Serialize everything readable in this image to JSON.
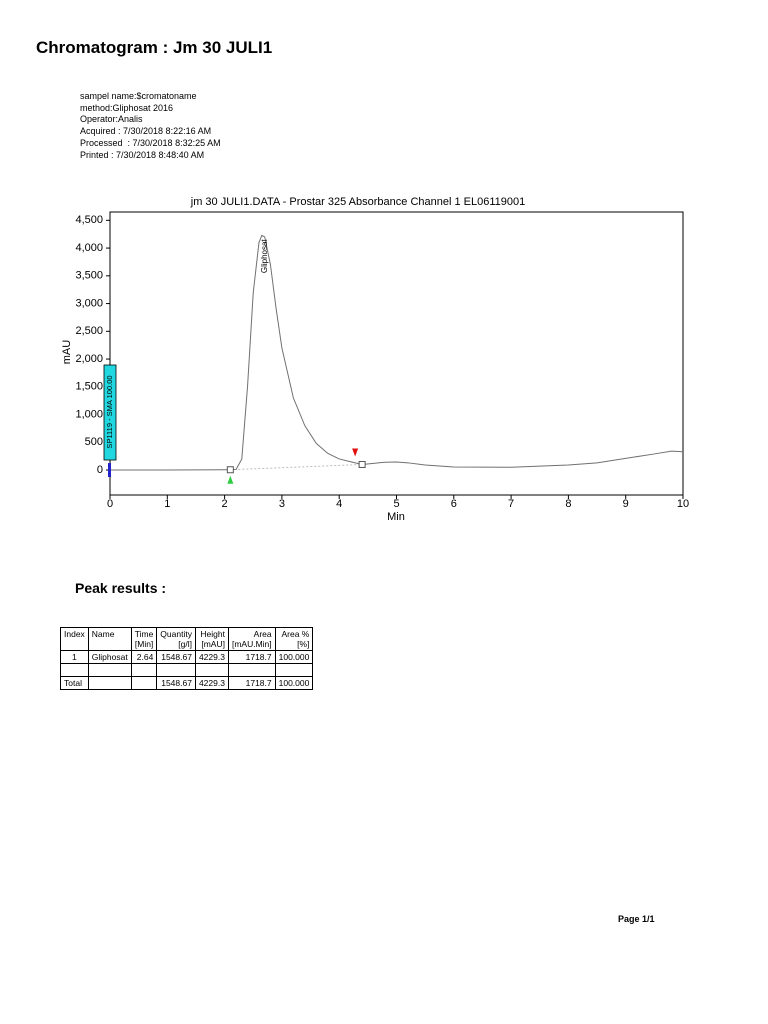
{
  "header": {
    "title": "Chromatogram : Jm 30 JULI1",
    "info": [
      "sampel name:$cromatoname",
      "method:Gliphosat 2016",
      "Operator:Analis",
      "Acquired : 7/30/2018 8:22:16 AM",
      "Processed  : 7/30/2018 8:32:25 AM",
      "Printed : 7/30/2018 8:48:40 AM"
    ]
  },
  "chart_data": {
    "type": "line",
    "title": "jm 30 JULI1.DATA - Prostar 325 Absorbance Channel 1 EL06119001",
    "xlabel": "Min",
    "ylabel": "mAU",
    "xlim": [
      0,
      10
    ],
    "xticks": [
      0,
      1,
      2,
      3,
      4,
      5,
      6,
      7,
      8,
      9,
      10
    ],
    "ylim": [
      -450,
      4650
    ],
    "yticks": [
      0,
      {
        "value": 500,
        "label": "500"
      },
      {
        "value": 1000,
        "label": "1,000"
      },
      {
        "value": 1500,
        "label": "1,500"
      },
      {
        "value": 2000,
        "label": "2,000"
      },
      {
        "value": 2500,
        "label": "2,500"
      },
      {
        "value": 3000,
        "label": "3,000"
      },
      {
        "value": 3500,
        "label": "3,500"
      },
      {
        "value": 4000,
        "label": "4,000"
      },
      {
        "value": 4500,
        "label": "4,500"
      }
    ],
    "series": [
      {
        "color": "#707070",
        "x": [
          0,
          1,
          2,
          2.2,
          2.3,
          2.4,
          2.5,
          2.6,
          2.65,
          2.7,
          2.8,
          2.9,
          3.0,
          3.2,
          3.4,
          3.6,
          3.8,
          4.0,
          4.2,
          4.4,
          4.6,
          4.8,
          5.0,
          5.2,
          5.5,
          6,
          7,
          8,
          8.5,
          9,
          9.5,
          9.8,
          10
        ],
        "values": [
          0,
          0,
          5,
          10,
          200,
          1500,
          3200,
          4100,
          4229,
          4200,
          3700,
          2900,
          2200,
          1300,
          800,
          480,
          300,
          200,
          150,
          100,
          120,
          140,
          144,
          130,
          90,
          54,
          50,
          90,
          130,
          210,
          290,
          340,
          330
        ]
      }
    ],
    "baseline": {
      "x": [
        2.1,
        4.4
      ],
      "values": [
        5,
        100
      ]
    },
    "annotations": [
      "Gliphosat",
      "SP1119 - SMA 100.00"
    ]
  },
  "peak_results": {
    "title": "Peak results :",
    "table": {
      "header": [
        [
          "Index"
        ],
        [
          "Name"
        ],
        [
          "Time",
          "[Min]"
        ],
        [
          "Quantity",
          "[g/l]"
        ],
        [
          "Height",
          "[mAU]"
        ],
        [
          "Area",
          "[mAU.Min]"
        ],
        [
          "Area %",
          "[%]"
        ]
      ],
      "rows": [
        [
          "1",
          "Gliphosat",
          "2.64",
          "1548.67",
          "4229.3",
          "1718.7",
          "100.000"
        ],
        [
          null,
          null,
          null,
          null,
          null,
          null,
          null
        ],
        [
          "Total",
          null,
          null,
          "1548.67",
          "4229.3",
          "1718.7",
          "100.000"
        ]
      ]
    }
  },
  "footer": {
    "page": "Page 1/1"
  }
}
